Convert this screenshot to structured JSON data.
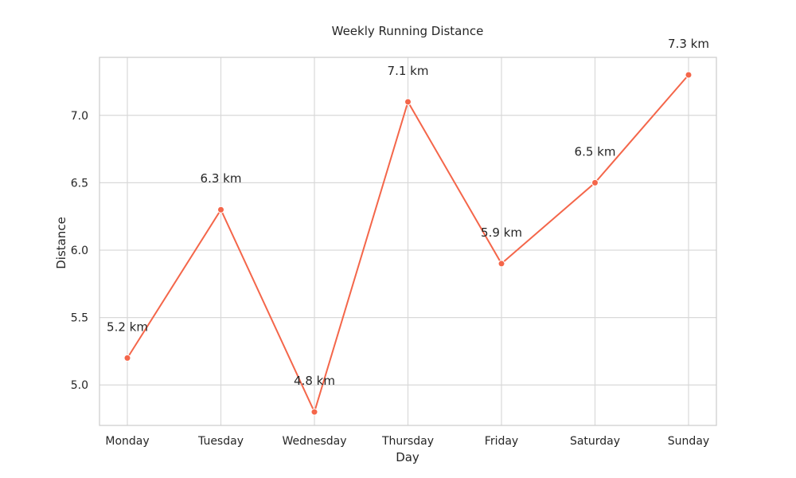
{
  "chart_data": {
    "type": "line",
    "title": "Weekly Running Distance",
    "xlabel": "Day",
    "ylabel": "Distance",
    "categories": [
      "Monday",
      "Tuesday",
      "Wednesday",
      "Thursday",
      "Friday",
      "Saturday",
      "Sunday"
    ],
    "series": [
      {
        "values": [
          5.2,
          6.3,
          4.8,
          7.1,
          5.9,
          6.5,
          7.3
        ],
        "labels": [
          "5.2 km",
          "6.3 km",
          "4.8 km",
          "7.1 km",
          "5.9 km",
          "6.5 km",
          "7.3 km"
        ],
        "color": "#f4664a",
        "marker": "circle"
      }
    ],
    "ylim": [
      4.7,
      7.43
    ],
    "yticks": [
      5.0,
      5.5,
      6.0,
      6.5,
      7.0
    ],
    "ytick_labels": [
      "5.0",
      "5.5",
      "6.0",
      "6.5",
      "7.0"
    ],
    "grid": true,
    "frame_color": "#cccccc",
    "grid_color": "#d9d9d9"
  }
}
